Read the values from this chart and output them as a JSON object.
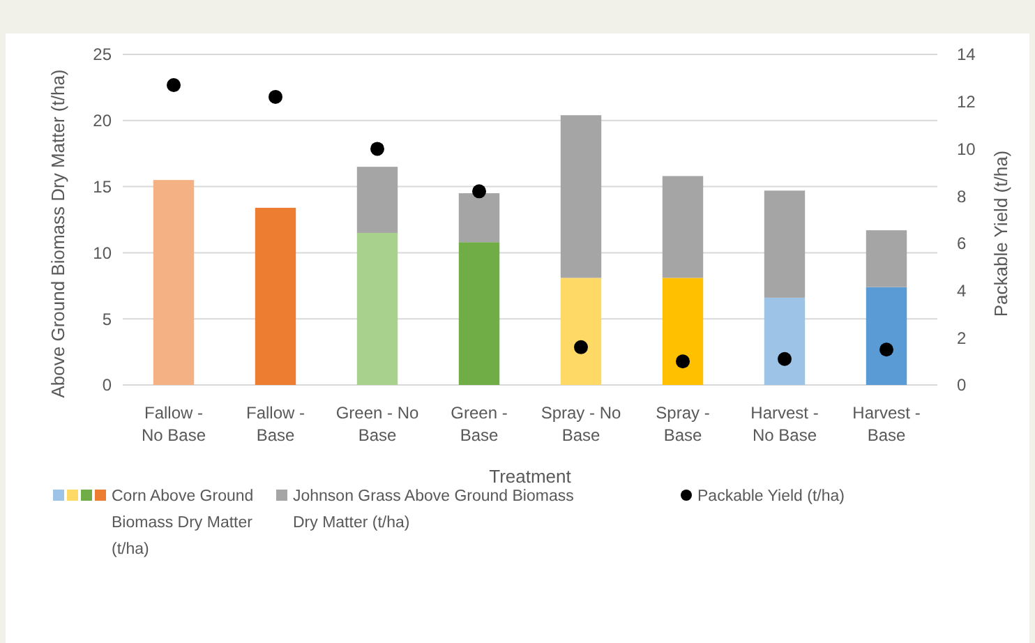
{
  "chart_data": {
    "type": "bar",
    "stacked": true,
    "xlabel": "Treatment",
    "ylabel": "Above Ground Biomass Dry Matter (t/ha)",
    "y2label": "Packable Yield (t/ha)",
    "categories": [
      "Fallow - No Base",
      "Fallow - Base",
      "Green - No Base",
      "Green - Base",
      "Spray - No Base",
      "Spray - Base",
      "Harvest - No Base",
      "Harvest - Base"
    ],
    "series": [
      {
        "name": "Corn Above Ground Biomass Dry Matter (t/ha)",
        "colors": [
          "#f4b183",
          "#ed7d31",
          "#a9d18e",
          "#70ad47",
          "#ffd966",
          "#ffc000",
          "#9dc3e6",
          "#5b9bd5"
        ],
        "values": [
          15.5,
          13.4,
          11.5,
          10.8,
          8.1,
          8.1,
          6.6,
          7.4
        ]
      },
      {
        "name": "Johnson Grass Above Ground Biomass Dry Matter (t/ha)",
        "color": "#a5a5a5",
        "values": [
          null,
          null,
          5.0,
          3.7,
          12.3,
          7.7,
          8.1,
          4.3
        ]
      },
      {
        "name": "Packable Yield (t/ha)",
        "type": "scatter",
        "axis": "y2",
        "color": "#000000",
        "marker": "circle",
        "values": [
          12.7,
          12.2,
          10.0,
          8.2,
          1.6,
          1.0,
          1.1,
          1.5
        ]
      }
    ],
    "ylim": [
      0,
      25
    ],
    "yticks": [
      0,
      5,
      10,
      15,
      20,
      25
    ],
    "y2lim": [
      0,
      14
    ],
    "y2ticks": [
      0,
      2,
      4,
      6,
      8,
      10,
      12,
      14
    ],
    "grid": "y",
    "legend": "bottom"
  }
}
